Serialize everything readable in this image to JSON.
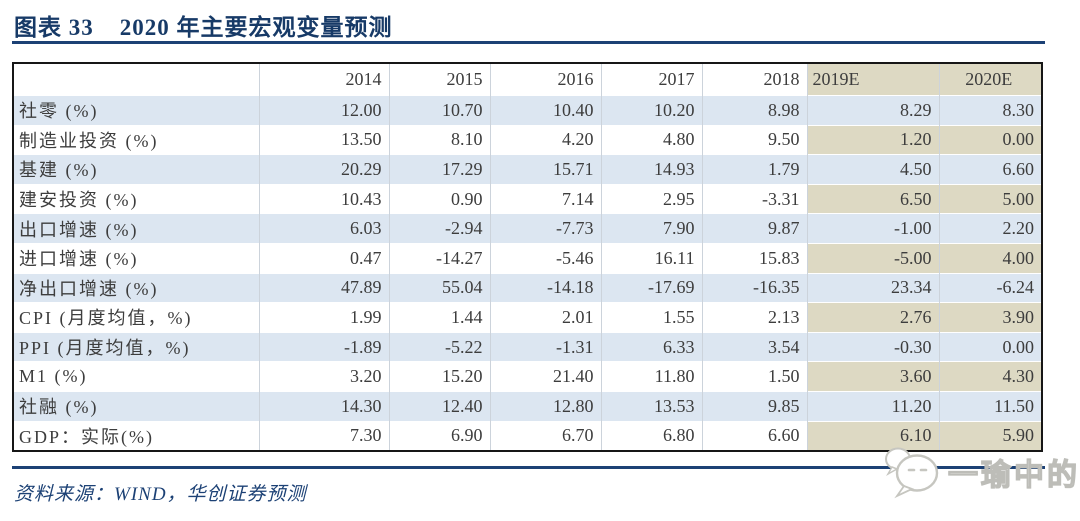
{
  "title": {
    "figure_label": "图表 33",
    "text": "2020 年主要宏观变量预测"
  },
  "table": {
    "columns": [
      "",
      "2014",
      "2015",
      "2016",
      "2017",
      "2018",
      "2019E",
      "2020E"
    ],
    "forecast_columns": [
      "2019E",
      "2020E"
    ],
    "rows": [
      {
        "label": "社零 (%)",
        "values": [
          "12.00",
          "10.70",
          "10.40",
          "10.20",
          "8.98",
          "8.29",
          "8.30"
        ]
      },
      {
        "label": "制造业投资 (%)",
        "values": [
          "13.50",
          "8.10",
          "4.20",
          "4.80",
          "9.50",
          "1.20",
          "0.00"
        ]
      },
      {
        "label": "基建 (%)",
        "values": [
          "20.29",
          "17.29",
          "15.71",
          "14.93",
          "1.79",
          "4.50",
          "6.60"
        ]
      },
      {
        "label": "建安投资 (%)",
        "values": [
          "10.43",
          "0.90",
          "7.14",
          "2.95",
          "-3.31",
          "6.50",
          "5.00"
        ]
      },
      {
        "label": "出口增速 (%)",
        "values": [
          "6.03",
          "-2.94",
          "-7.73",
          "7.90",
          "9.87",
          "-1.00",
          "2.20"
        ]
      },
      {
        "label": "进口增速 (%)",
        "values": [
          "0.47",
          "-14.27",
          "-5.46",
          "16.11",
          "15.83",
          "-5.00",
          "4.00"
        ]
      },
      {
        "label": "净出口增速 (%)",
        "values": [
          "47.89",
          "55.04",
          "-14.18",
          "-17.69",
          "-16.35",
          "23.34",
          "-6.24"
        ]
      },
      {
        "label": "CPI (月度均值，%)",
        "values": [
          "1.99",
          "1.44",
          "2.01",
          "1.55",
          "2.13",
          "2.76",
          "3.90"
        ]
      },
      {
        "label": "PPI (月度均值，%)",
        "values": [
          "-1.89",
          "-5.22",
          "-1.31",
          "6.33",
          "3.54",
          "-0.30",
          "0.00"
        ]
      },
      {
        "label": "M1 (%)",
        "values": [
          "3.20",
          "15.20",
          "21.40",
          "11.80",
          "1.50",
          "3.60",
          "4.30"
        ]
      },
      {
        "label": "社融 (%)",
        "values": [
          "14.30",
          "12.40",
          "12.80",
          "13.53",
          "9.85",
          "11.20",
          "11.50"
        ]
      },
      {
        "label": "GDP：实际(%)",
        "values": [
          "7.30",
          "6.90",
          "6.70",
          "6.80",
          "6.60",
          "6.10",
          "5.90"
        ]
      }
    ]
  },
  "footer": {
    "source": "资料来源：WIND，华创证券预测"
  },
  "watermark": {
    "text": "一瑜中的",
    "icon": "wechat-icon"
  },
  "colors": {
    "accent_navy": "#1c4175",
    "title_navy": "#173a67",
    "row_blue": "#dce6f1",
    "forecast_tan": "#ddd9c3",
    "table_border": "#161616",
    "gridline": "#ccd3db",
    "table_text": "#3d3d3d",
    "watermark_gray": "#bdbdb8"
  }
}
